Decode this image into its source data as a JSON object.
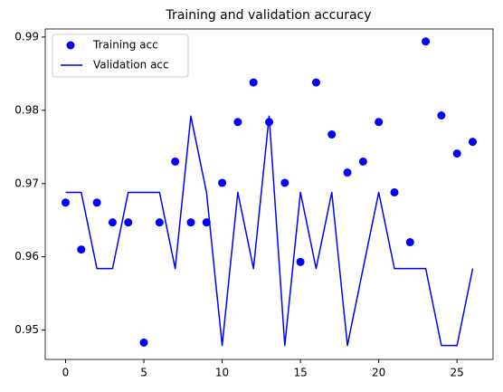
{
  "chart_data": {
    "type": "line",
    "title": "Training and validation accuracy",
    "x": [
      0,
      1,
      2,
      3,
      4,
      5,
      6,
      7,
      8,
      9,
      10,
      11,
      12,
      13,
      14,
      15,
      16,
      17,
      18,
      19,
      20,
      21,
      22,
      23,
      24,
      25,
      26
    ],
    "series": [
      {
        "name": "Training acc",
        "color": "#0000ff",
        "style": "markers",
        "values": [
          0.9674,
          0.961,
          0.9674,
          0.9647,
          0.9647,
          0.9483,
          0.9647,
          0.973,
          0.9647,
          0.9647,
          0.9701,
          0.9784,
          0.9838,
          0.9784,
          0.9701,
          0.9593,
          0.9838,
          0.9767,
          0.9715,
          0.973,
          0.9784,
          0.9688,
          0.962,
          0.9894,
          0.9793,
          0.9741,
          0.9757
        ]
      },
      {
        "name": "Validation acc",
        "color": "#0000ff",
        "style": "line",
        "values": [
          0.9688,
          0.9688,
          0.9584,
          0.9584,
          0.9688,
          0.9688,
          0.9688,
          0.9584,
          0.9792,
          0.9688,
          0.9479,
          0.9688,
          0.9584,
          0.9792,
          0.9479,
          0.9688,
          0.9584,
          0.9688,
          0.9479,
          0.9584,
          0.9688,
          0.9584,
          0.9584,
          0.9584,
          0.9479,
          0.9479,
          0.9584
        ]
      }
    ],
    "xlim": [
      -1.3,
      27.3
    ],
    "xticks": [
      0,
      5,
      10,
      15,
      20,
      25
    ],
    "ylim": [
      0.946,
      0.9911
    ],
    "yticks": [
      0.95,
      0.96,
      0.97,
      0.98,
      0.99
    ],
    "legend": "upper left",
    "grid": false
  }
}
